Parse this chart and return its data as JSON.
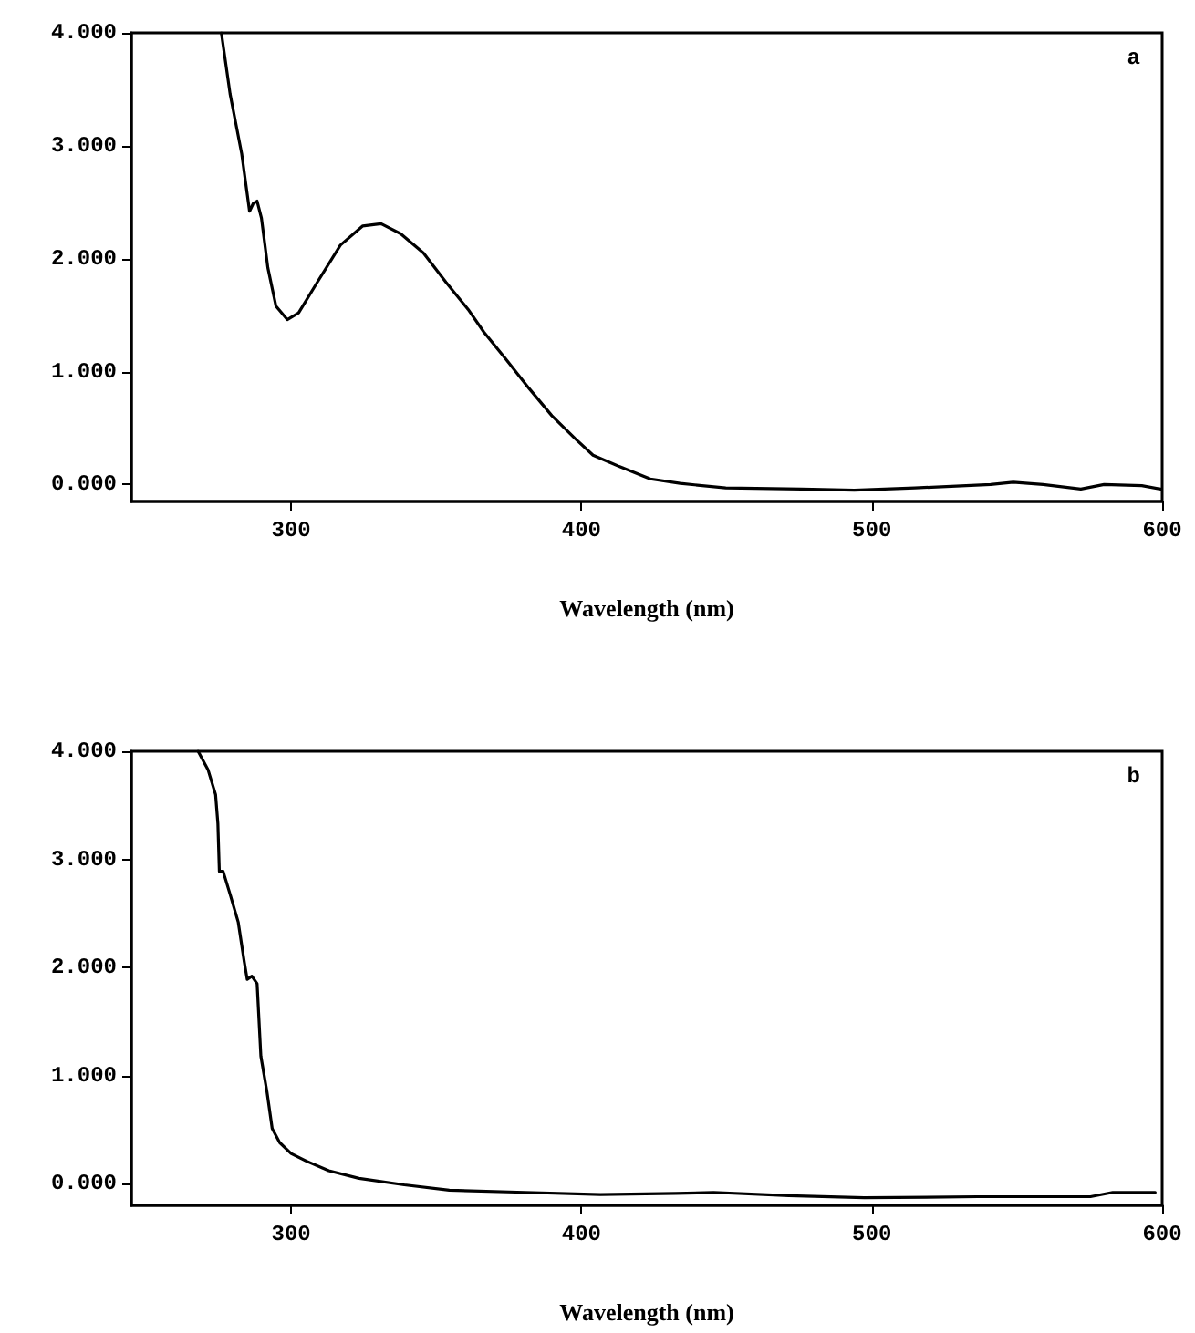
{
  "chart_data": [
    {
      "type": "line",
      "xlabel": "Wavelength (nm)",
      "annotations": [
        "a"
      ],
      "xlim": [
        245,
        600
      ],
      "xticks": [
        300,
        400,
        500,
        600
      ],
      "ylim": [
        -0.15,
        4
      ],
      "yticks": [
        {
          "value": 0,
          "label": "0.000"
        },
        {
          "value": 1,
          "label": "1.000"
        },
        {
          "value": 2,
          "label": "2.000"
        },
        {
          "value": 3,
          "label": "3.000"
        },
        {
          "value": 4,
          "label": "4.000"
        }
      ],
      "grid": false,
      "marker": "none",
      "line_style": "solid",
      "series": [
        {
          "color": "#000000",
          "x": [
            276,
            279,
            283,
            285.7,
            287,
            288.3,
            289.8,
            292,
            294.8,
            298.7,
            302.6,
            309,
            317,
            324.7,
            331,
            337.8,
            345.6,
            353.4,
            361,
            366.4,
            374,
            382,
            389.8,
            397.7,
            404,
            413,
            423.7,
            434,
            449.7,
            475.8,
            494,
            514.8,
            540.9,
            548.7,
            559,
            572,
            580,
            593,
            599.5
          ],
          "values": [
            4.0,
            3.46,
            2.93,
            2.42,
            2.49,
            2.51,
            2.36,
            1.92,
            1.58,
            1.46,
            1.52,
            1.79,
            2.12,
            2.29,
            2.31,
            2.22,
            2.05,
            1.79,
            1.55,
            1.35,
            1.11,
            0.85,
            0.61,
            0.41,
            0.26,
            0.16,
            0.05,
            0.01,
            -0.03,
            -0.04,
            -0.05,
            -0.03,
            0.0,
            0.02,
            0.0,
            -0.04,
            0.0,
            -0.01,
            -0.04
          ]
        }
      ]
    },
    {
      "type": "line",
      "xlabel": "Wavelength (nm)",
      "annotations": [
        "b"
      ],
      "xlim": [
        245,
        600
      ],
      "xticks": [
        300,
        400,
        500,
        600
      ],
      "ylim": [
        -0.2,
        4
      ],
      "yticks": [
        {
          "value": 0,
          "label": "0.000"
        },
        {
          "value": 1,
          "label": "1.000"
        },
        {
          "value": 2,
          "label": "2.000"
        },
        {
          "value": 3,
          "label": "3.000"
        },
        {
          "value": 4,
          "label": "4.000"
        }
      ],
      "grid": false,
      "marker": "none",
      "line_style": "solid",
      "series": [
        {
          "color": "#000000",
          "x": [
            268,
            271.4,
            274,
            274.8,
            275.3,
            276.6,
            279.2,
            281.8,
            283.9,
            284.9,
            286.5,
            288.3,
            289.6,
            291.7,
            293.5,
            296.1,
            300,
            305.2,
            313,
            323.4,
            339,
            354.5,
            380.5,
            406.5,
            432.5,
            445.5,
            471.4,
            497.4,
            536.4,
            575.3,
            583,
            597.6
          ],
          "values": [
            4.0,
            3.83,
            3.6,
            3.33,
            2.89,
            2.89,
            2.66,
            2.42,
            2.05,
            1.89,
            1.92,
            1.85,
            1.18,
            0.85,
            0.51,
            0.38,
            0.28,
            0.21,
            0.12,
            0.05,
            -0.01,
            -0.06,
            -0.08,
            -0.1,
            -0.09,
            -0.08,
            -0.11,
            -0.13,
            -0.12,
            -0.12,
            -0.08,
            -0.08
          ]
        }
      ]
    }
  ]
}
